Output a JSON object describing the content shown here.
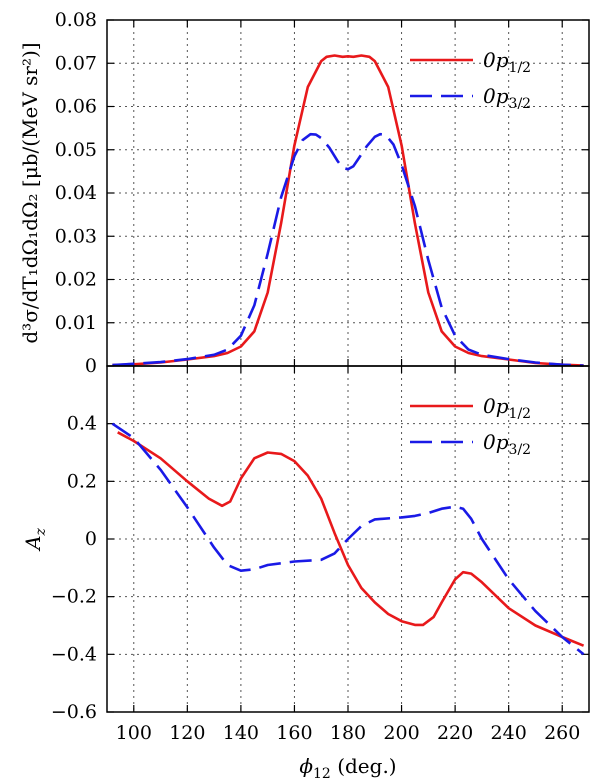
{
  "chart_data": [
    {
      "type": "line",
      "xlabel": "",
      "ylabel": "d³σ/dT₁dΩ₁dΩ₂ [μb/(MeV sr²)]",
      "xlim": [
        90,
        270
      ],
      "ylim": [
        0,
        0.08
      ],
      "x_ticks": [
        100,
        120,
        140,
        160,
        180,
        200,
        220,
        240,
        260
      ],
      "y_ticks": [
        0,
        0.01,
        0.02,
        0.03,
        0.04,
        0.05,
        0.06,
        0.07,
        0.08
      ],
      "y_tick_labels": [
        "0",
        "0.01",
        "0.02",
        "0.03",
        "0.04",
        "0.05",
        "0.06",
        "0.07",
        "0.08"
      ],
      "grid": true,
      "legend_position": "top-right",
      "series": [
        {
          "name": "0p1/2",
          "name_base": "0p",
          "name_sub": "1/2",
          "color": "#e8191b",
          "style": "solid",
          "x": [
            92,
            100,
            110,
            120,
            130,
            135,
            140,
            145,
            150,
            155,
            160,
            165,
            170,
            172,
            175,
            178,
            180,
            182,
            185,
            188,
            190,
            195,
            200,
            205,
            210,
            215,
            220,
            225,
            230,
            240,
            250,
            260,
            268
          ],
          "y": [
            0.0002,
            0.0004,
            0.0008,
            0.0015,
            0.0023,
            0.003,
            0.0045,
            0.008,
            0.017,
            0.033,
            0.051,
            0.0645,
            0.0705,
            0.0715,
            0.0718,
            0.0715,
            0.0716,
            0.0715,
            0.0718,
            0.0715,
            0.0705,
            0.0645,
            0.051,
            0.033,
            0.017,
            0.008,
            0.0045,
            0.003,
            0.0023,
            0.0015,
            0.0007,
            0.0003,
            0.0001
          ]
        },
        {
          "name": "0p3/2",
          "name_base": "0p",
          "name_sub": "3/2",
          "color": "#1a1ae6",
          "style": "dashed",
          "x": [
            92,
            100,
            110,
            120,
            130,
            135,
            140,
            145,
            150,
            155,
            160,
            163,
            166,
            168,
            170,
            173,
            176,
            178,
            180,
            182,
            184,
            187,
            190,
            192,
            194,
            197,
            200,
            205,
            210,
            215,
            220,
            225,
            230,
            240,
            250,
            260,
            268
          ],
          "y": [
            0.0002,
            0.0005,
            0.0009,
            0.0016,
            0.0026,
            0.0038,
            0.007,
            0.014,
            0.026,
            0.039,
            0.0485,
            0.0522,
            0.0536,
            0.0535,
            0.0527,
            0.0505,
            0.0475,
            0.0458,
            0.0455,
            0.0462,
            0.048,
            0.0508,
            0.053,
            0.0536,
            0.0535,
            0.0512,
            0.0465,
            0.037,
            0.0245,
            0.0135,
            0.007,
            0.0038,
            0.0026,
            0.0016,
            0.0008,
            0.0003,
            0.0001
          ]
        }
      ]
    },
    {
      "type": "line",
      "xlabel": "ϕ₁₂ (deg.)",
      "xlabel_base": "ϕ",
      "xlabel_sub": "12",
      "xlabel_unit": " (deg.)",
      "ylabel": "Az",
      "ylabel_base": "A",
      "ylabel_sub": "z",
      "xlim": [
        90,
        270
      ],
      "ylim": [
        -0.6,
        0.6
      ],
      "x_ticks": [
        100,
        120,
        140,
        160,
        180,
        200,
        220,
        240,
        260
      ],
      "x_tick_labels": [
        "100",
        "120",
        "140",
        "160",
        "180",
        "200",
        "220",
        "240",
        "260"
      ],
      "y_ticks": [
        -0.6,
        -0.4,
        -0.2,
        0,
        0.2,
        0.4
      ],
      "y_tick_labels": [
        "−0.6",
        "−0.4",
        "−0.2",
        "0",
        "0.2",
        "0.4"
      ],
      "grid": true,
      "legend_position": "top-right",
      "series": [
        {
          "name": "0p1/2",
          "name_base": "0p",
          "name_sub": "1/2",
          "color": "#e8191b",
          "style": "solid",
          "x": [
            94,
            100,
            110,
            120,
            128,
            133,
            136,
            140,
            145,
            150,
            155,
            160,
            165,
            170,
            175,
            180,
            185,
            190,
            195,
            200,
            205,
            208,
            212,
            215,
            220,
            223,
            226,
            230,
            240,
            250,
            260,
            268
          ],
          "y": [
            0.37,
            0.34,
            0.28,
            0.2,
            0.14,
            0.115,
            0.13,
            0.21,
            0.28,
            0.3,
            0.295,
            0.27,
            0.22,
            0.14,
            0.02,
            -0.09,
            -0.17,
            -0.22,
            -0.26,
            -0.285,
            -0.298,
            -0.298,
            -0.27,
            -0.22,
            -0.14,
            -0.115,
            -0.12,
            -0.15,
            -0.24,
            -0.3,
            -0.34,
            -0.37
          ]
        },
        {
          "name": "0p3/2",
          "name_base": "0p",
          "name_sub": "3/2",
          "color": "#1a1ae6",
          "style": "dashed",
          "x": [
            92,
            100,
            110,
            120,
            130,
            135,
            140,
            145,
            150,
            160,
            170,
            175,
            180,
            185,
            190,
            200,
            205,
            210,
            215,
            220,
            223,
            226,
            230,
            240,
            250,
            260,
            268
          ],
          "y": [
            0.4,
            0.35,
            0.24,
            0.11,
            -0.03,
            -0.09,
            -0.11,
            -0.105,
            -0.09,
            -0.078,
            -0.072,
            -0.05,
            0.0,
            0.045,
            0.068,
            0.075,
            0.08,
            0.09,
            0.105,
            0.112,
            0.105,
            0.07,
            0.0,
            -0.14,
            -0.25,
            -0.34,
            -0.4
          ]
        }
      ]
    }
  ]
}
